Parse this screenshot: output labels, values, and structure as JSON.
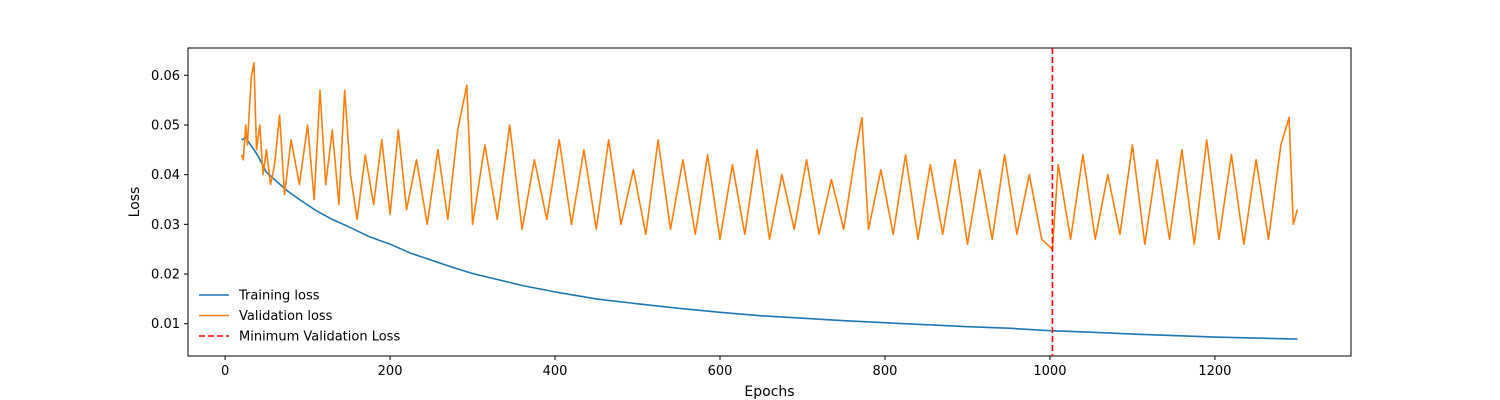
{
  "chart_data": {
    "type": "line",
    "xlabel": "Epochs",
    "ylabel": "Loss",
    "xlim": [
      -45,
      1365
    ],
    "ylim": [
      0.0035,
      0.0655
    ],
    "x_ticks": [
      0,
      200,
      400,
      600,
      800,
      1000,
      1200
    ],
    "y_ticks": [
      0.01,
      0.02,
      0.03,
      0.04,
      0.05,
      0.06
    ],
    "x_tick_labels": [
      "0",
      "200",
      "400",
      "600",
      "800",
      "1000",
      "1200"
    ],
    "y_tick_labels": [
      "0.01",
      "0.02",
      "0.03",
      "0.04",
      "0.05",
      "0.06"
    ],
    "grid": false,
    "legend_position": "lower-left",
    "legend_frame": false,
    "series": [
      {
        "name": "Training loss",
        "color": "#1f77b4",
        "style": "solid",
        "x": [
          20,
          25,
          30,
          35,
          40,
          50,
          60,
          75,
          90,
          110,
          130,
          150,
          175,
          200,
          225,
          250,
          275,
          300,
          330,
          360,
          400,
          450,
          500,
          550,
          600,
          650,
          700,
          750,
          800,
          850,
          900,
          950,
          1000,
          1050,
          1100,
          1150,
          1200,
          1250,
          1300
        ],
        "y": [
          0.047,
          0.0475,
          0.0462,
          0.045,
          0.0437,
          0.0405,
          0.039,
          0.0368,
          0.035,
          0.0328,
          0.031,
          0.0295,
          0.0275,
          0.026,
          0.0242,
          0.0228,
          0.0214,
          0.0201,
          0.0189,
          0.0177,
          0.0164,
          0.015,
          0.014,
          0.0131,
          0.0123,
          0.0116,
          0.0111,
          0.0106,
          0.0102,
          0.0098,
          0.0094,
          0.0091,
          0.0086,
          0.0083,
          0.0079,
          0.0076,
          0.0073,
          0.0071,
          0.0069
        ]
      },
      {
        "name": "Validation loss",
        "color": "#ff7f0e",
        "style": "solid",
        "x": [
          20,
          22,
          25,
          27,
          30,
          32,
          35,
          38,
          42,
          46,
          50,
          55,
          60,
          66,
          72,
          80,
          90,
          100,
          108,
          115,
          122,
          130,
          138,
          145,
          152,
          160,
          170,
          180,
          190,
          200,
          210,
          220,
          232,
          245,
          258,
          270,
          282,
          293,
          300,
          315,
          330,
          345,
          360,
          375,
          390,
          405,
          420,
          435,
          450,
          465,
          480,
          495,
          510,
          525,
          540,
          555,
          570,
          585,
          600,
          615,
          630,
          645,
          660,
          675,
          690,
          705,
          720,
          735,
          750,
          765,
          772,
          780,
          795,
          810,
          825,
          840,
          855,
          870,
          885,
          900,
          915,
          930,
          945,
          960,
          975,
          990,
          1003,
          1010,
          1025,
          1040,
          1055,
          1070,
          1085,
          1100,
          1115,
          1130,
          1145,
          1160,
          1175,
          1190,
          1205,
          1220,
          1235,
          1250,
          1265,
          1280,
          1290,
          1295,
          1300
        ],
        "y": [
          0.044,
          0.043,
          0.05,
          0.046,
          0.055,
          0.06,
          0.0625,
          0.045,
          0.05,
          0.04,
          0.045,
          0.038,
          0.042,
          0.052,
          0.036,
          0.047,
          0.038,
          0.05,
          0.035,
          0.057,
          0.038,
          0.049,
          0.034,
          0.057,
          0.04,
          0.031,
          0.044,
          0.034,
          0.047,
          0.032,
          0.049,
          0.033,
          0.043,
          0.03,
          0.045,
          0.031,
          0.049,
          0.058,
          0.03,
          0.046,
          0.031,
          0.05,
          0.029,
          0.043,
          0.031,
          0.047,
          0.03,
          0.045,
          0.029,
          0.047,
          0.03,
          0.041,
          0.028,
          0.047,
          0.029,
          0.043,
          0.028,
          0.044,
          0.027,
          0.042,
          0.028,
          0.045,
          0.027,
          0.04,
          0.029,
          0.043,
          0.028,
          0.039,
          0.029,
          0.045,
          0.0515,
          0.029,
          0.041,
          0.028,
          0.044,
          0.027,
          0.042,
          0.028,
          0.043,
          0.026,
          0.041,
          0.027,
          0.044,
          0.028,
          0.04,
          0.027,
          0.025,
          0.042,
          0.027,
          0.044,
          0.027,
          0.04,
          0.028,
          0.046,
          0.026,
          0.043,
          0.027,
          0.045,
          0.026,
          0.047,
          0.027,
          0.044,
          0.026,
          0.043,
          0.027,
          0.046,
          0.0515,
          0.03,
          0.033
        ]
      }
    ],
    "vertical_lines": [
      {
        "name": "Minimum Validation Loss",
        "x": 1003,
        "color": "#ff0000",
        "style": "dashed"
      }
    ]
  }
}
